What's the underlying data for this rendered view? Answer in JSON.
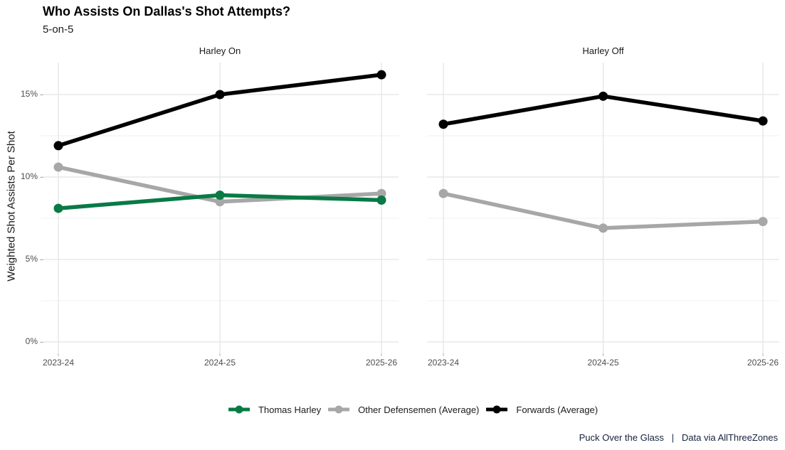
{
  "title": "Who Assists On Dallas's Shot Attempts?",
  "subtitle": "5-on-5",
  "caption": "Puck Over the Glass   |   Data via AllThreeZones",
  "chart_data": {
    "type": "line",
    "title": "Who Assists On Dallas's Shot Attempts?",
    "subtitle": "5-on-5",
    "xlabel": "",
    "ylabel": "Weighted Shot Assists Per Shot",
    "categories": [
      "2023-24",
      "2024-25",
      "2025-26"
    ],
    "y_axis": {
      "tick_values": [
        0,
        5,
        10,
        15
      ],
      "tick_labels": [
        "0%",
        "5%",
        "10%",
        "15%"
      ],
      "minor_tick_values": [
        2.5,
        7.5,
        12.5
      ],
      "ylim": [
        0,
        17
      ],
      "unit": "percent"
    },
    "grid": "on",
    "legend_position": "bottom",
    "facets": [
      {
        "title": "Harley On",
        "series": [
          {
            "name": "Other Defensemen (Average)",
            "color": "#a7a7a7",
            "values": [
              10.6,
              8.5,
              9.0
            ]
          },
          {
            "name": "Thomas Harley",
            "color": "#097a45",
            "values": [
              8.1,
              8.9,
              8.6
            ]
          },
          {
            "name": "Forwards (Average)",
            "color": "#000000",
            "values": [
              11.9,
              15.0,
              16.2
            ]
          }
        ]
      },
      {
        "title": "Harley Off",
        "series": [
          {
            "name": "Other Defensemen (Average)",
            "color": "#a7a7a7",
            "values": [
              9.0,
              6.9,
              7.3
            ]
          },
          {
            "name": "Forwards (Average)",
            "color": "#000000",
            "values": [
              13.2,
              14.9,
              13.4
            ]
          }
        ]
      }
    ],
    "legend": [
      {
        "name": "Thomas Harley",
        "color": "#097a45"
      },
      {
        "name": "Other Defensemen (Average)",
        "color": "#a7a7a7"
      },
      {
        "name": "Forwards (Average)",
        "color": "#000000"
      }
    ]
  }
}
